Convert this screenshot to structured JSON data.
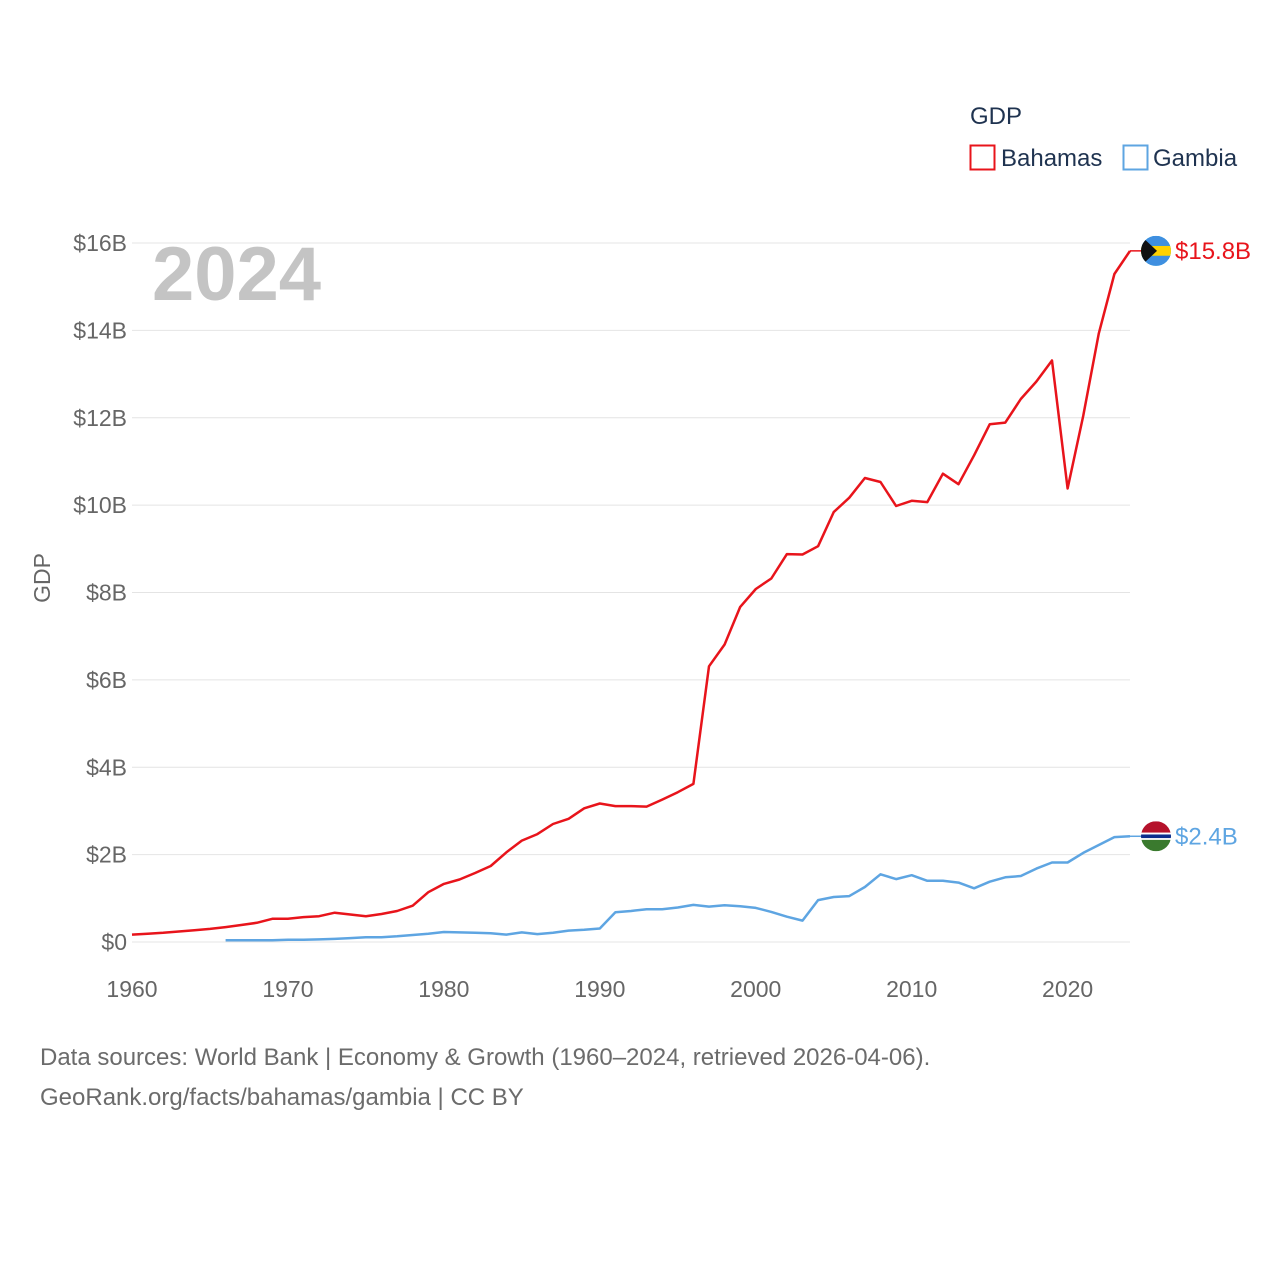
{
  "chart_data": {
    "type": "line",
    "year_label": "2024",
    "ylabel": "GDP",
    "xlabel": "",
    "legend_title": "GDP",
    "legend_position": "top-right",
    "ylim": [
      0,
      16
    ],
    "xlim": [
      1960,
      2024
    ],
    "y_ticks": [
      0,
      2,
      4,
      6,
      8,
      10,
      12,
      14,
      16
    ],
    "y_tick_labels": [
      "$0",
      "$2B",
      "$4B",
      "$6B",
      "$8B",
      "$10B",
      "$12B",
      "$14B",
      "$16B"
    ],
    "x_ticks": [
      1960,
      1970,
      1980,
      1990,
      2000,
      2010,
      2020
    ],
    "x_tick_labels": [
      "1960",
      "1970",
      "1980",
      "1990",
      "2000",
      "2010",
      "2020"
    ],
    "grid": true,
    "series": [
      {
        "name": "Bahamas",
        "color": "#e8141b",
        "end_label": "$15.8B",
        "flag": "bahamas-flag",
        "x": [
          1960,
          1961,
          1962,
          1963,
          1964,
          1965,
          1966,
          1967,
          1968,
          1969,
          1970,
          1971,
          1972,
          1973,
          1974,
          1975,
          1976,
          1977,
          1978,
          1979,
          1980,
          1981,
          1982,
          1983,
          1984,
          1985,
          1986,
          1987,
          1988,
          1989,
          1990,
          1991,
          1992,
          1993,
          1994,
          1995,
          1996,
          1997,
          1998,
          1999,
          2000,
          2001,
          2002,
          2003,
          2004,
          2005,
          2006,
          2007,
          2008,
          2009,
          2010,
          2011,
          2012,
          2013,
          2014,
          2015,
          2016,
          2017,
          2018,
          2019,
          2020,
          2021,
          2022,
          2023,
          2024
        ],
        "values": [
          0.17,
          0.19,
          0.21,
          0.24,
          0.27,
          0.3,
          0.34,
          0.39,
          0.44,
          0.53,
          0.53,
          0.57,
          0.59,
          0.67,
          0.63,
          0.59,
          0.64,
          0.71,
          0.83,
          1.14,
          1.33,
          1.43,
          1.58,
          1.74,
          2.05,
          2.32,
          2.47,
          2.7,
          2.82,
          3.06,
          3.17,
          3.11,
          3.11,
          3.1,
          3.26,
          3.43,
          3.62,
          6.31,
          6.81,
          7.67,
          8.08,
          8.32,
          8.88,
          8.87,
          9.06,
          9.84,
          10.17,
          10.62,
          10.53,
          9.98,
          10.1,
          10.07,
          10.72,
          10.48,
          11.14,
          11.85,
          11.89,
          12.43,
          12.83,
          13.31,
          10.38,
          12.04,
          13.93,
          15.29,
          15.82
        ]
      },
      {
        "name": "Gambia",
        "color": "#5ea5e2",
        "end_label": "$2.4B",
        "flag": "gambia-flag",
        "x": [
          1966,
          1967,
          1968,
          1969,
          1970,
          1971,
          1972,
          1973,
          1974,
          1975,
          1976,
          1977,
          1978,
          1979,
          1980,
          1981,
          1982,
          1983,
          1984,
          1985,
          1986,
          1987,
          1988,
          1989,
          1990,
          1991,
          1992,
          1993,
          1994,
          1995,
          1996,
          1997,
          1998,
          1999,
          2000,
          2001,
          2002,
          2003,
          2004,
          2005,
          2006,
          2007,
          2008,
          2009,
          2010,
          2011,
          2012,
          2013,
          2014,
          2015,
          2016,
          2017,
          2018,
          2019,
          2020,
          2021,
          2022,
          2023,
          2024
        ],
        "values": [
          0.04,
          0.04,
          0.04,
          0.04,
          0.05,
          0.05,
          0.06,
          0.07,
          0.09,
          0.11,
          0.11,
          0.13,
          0.16,
          0.19,
          0.23,
          0.22,
          0.21,
          0.2,
          0.17,
          0.22,
          0.18,
          0.21,
          0.26,
          0.28,
          0.31,
          0.68,
          0.71,
          0.75,
          0.75,
          0.79,
          0.85,
          0.81,
          0.84,
          0.82,
          0.78,
          0.69,
          0.58,
          0.49,
          0.96,
          1.03,
          1.05,
          1.26,
          1.55,
          1.44,
          1.53,
          1.4,
          1.4,
          1.36,
          1.23,
          1.38,
          1.48,
          1.51,
          1.68,
          1.82,
          1.82,
          2.04,
          2.22,
          2.4,
          2.42
        ]
      }
    ]
  },
  "footer": {
    "line1": "Data sources: World Bank | Economy & Growth (1960–2024, retrieved 2026-04-06).",
    "line2": "GeoRank.org/facts/bahamas/gambia | CC BY"
  }
}
